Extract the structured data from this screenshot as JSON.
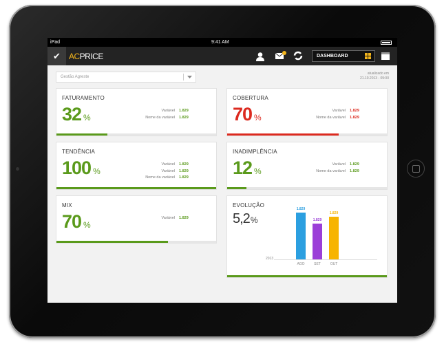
{
  "status_bar": {
    "carrier": "iPad",
    "time": "9:41 AM"
  },
  "header": {
    "logo_prefix": "AC",
    "logo_suffix": "PRICE",
    "view": "DASHBOARD"
  },
  "filter": {
    "selected": "Gestão Agreste"
  },
  "updated": {
    "label": "atualizado em",
    "datetime": "21.10.2013 - 09:00"
  },
  "cards": [
    {
      "title": "FATURAMENTO",
      "value": 32,
      "unit": "%",
      "color": "#5a9a1b",
      "rows": [
        {
          "label": "Variável",
          "value": "1.829"
        },
        {
          "label": "Nome da variável",
          "value": "1.829"
        }
      ]
    },
    {
      "title": "COBERTURA",
      "value": 70,
      "unit": "%",
      "color": "#dc2a1f",
      "rows": [
        {
          "label": "Variável",
          "value": "1.829"
        },
        {
          "label": "Nome da variável",
          "value": "1.829"
        }
      ]
    },
    {
      "title": "TENDÊNCIA",
      "value": 100,
      "unit": "%",
      "color": "#5a9a1b",
      "rows": [
        {
          "label": "Variável",
          "value": "1.829"
        },
        {
          "label": "Variável",
          "value": "1.829"
        },
        {
          "label": "Nome da variável",
          "value": "1.829"
        }
      ]
    },
    {
      "title": "INADIMPLÊNCIA",
      "value": 12,
      "unit": "%",
      "color": "#5a9a1b",
      "rows": [
        {
          "label": "Variável",
          "value": "1.829"
        },
        {
          "label": "Nome da variável",
          "value": "1.829"
        }
      ]
    },
    {
      "title": "MIX",
      "value": 70,
      "unit": "%",
      "color": "#5a9a1b",
      "rows": [
        {
          "label": "Variável",
          "value": "1.829"
        }
      ]
    }
  ],
  "evolution": {
    "title": "EVOLUÇÃO",
    "value": "5,2",
    "unit": "%",
    "year": "2013",
    "bars": [
      {
        "label": "AGO",
        "value_label": "1.829",
        "color": "#2b9fe0"
      },
      {
        "label": "SET",
        "value_label": "1.829",
        "color": "#9b3fd8"
      },
      {
        "label": "OUT",
        "value_label": "1.829",
        "color": "#f7b400"
      }
    ]
  }
}
